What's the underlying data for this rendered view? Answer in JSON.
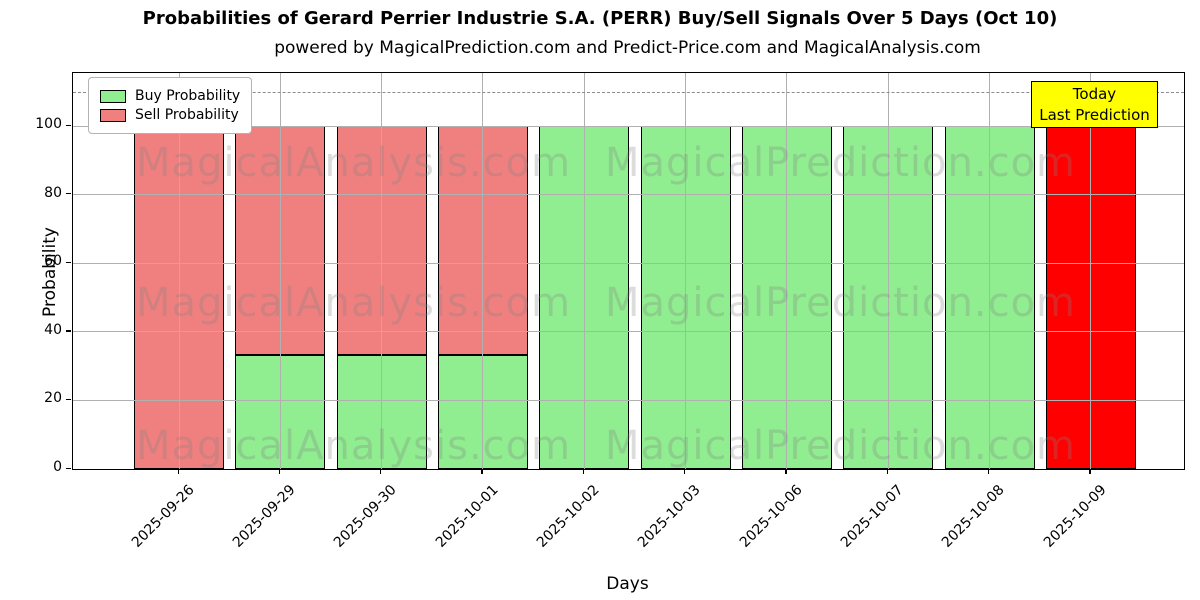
{
  "header": {
    "title": "Probabilities of Gerard Perrier Industrie S.A. (PERR) Buy/Sell Signals Over 5 Days (Oct 10)",
    "subtitle": "powered by MagicalPrediction.com and Predict-Price.com and MagicalAnalysis.com"
  },
  "axes": {
    "xlabel": "Days",
    "ylabel": "Probability",
    "yticks": [
      0,
      20,
      40,
      60,
      80,
      100
    ],
    "ylim": [
      0,
      115.5
    ],
    "dashed_line_y": 110,
    "grid": "on",
    "grid_color": "#b0b0b0"
  },
  "legend": {
    "position": "upper-left",
    "items": [
      {
        "label": "Buy Probability",
        "color": "#90EE90"
      },
      {
        "label": "Sell Probability",
        "color": "#F08080"
      }
    ]
  },
  "annotation": {
    "line1": "Today",
    "line2": "Last Prediction",
    "bg_color": "#FFFF00",
    "border_color": "#000000"
  },
  "watermarks": {
    "left_text": "MagicalAnalysis.com",
    "right_text": "MagicalPrediction.com"
  },
  "chart_data": {
    "type": "bar",
    "stacked": true,
    "title": "Probabilities of Gerard Perrier Industrie S.A. (PERR) Buy/Sell Signals Over 5 Days (Oct 10)",
    "xlabel": "Days",
    "ylabel": "Probability",
    "ylim": [
      0,
      115.5
    ],
    "categories": [
      "2025-09-26",
      "2025-09-29",
      "2025-09-30",
      "2025-10-01",
      "2025-10-02",
      "2025-10-03",
      "2025-10-06",
      "2025-10-07",
      "2025-10-08",
      "2025-10-09"
    ],
    "series": [
      {
        "name": "Buy Probability",
        "color": "#90EE90",
        "values": [
          0,
          33.33,
          33.33,
          33.33,
          100,
          100,
          100,
          100,
          100,
          0
        ]
      },
      {
        "name": "Sell Probability",
        "color": "#F08080",
        "values": [
          100,
          66.67,
          66.67,
          66.67,
          0,
          0,
          0,
          0,
          0,
          0
        ]
      },
      {
        "name": "Today Last Prediction",
        "color": "#FF0000",
        "values": [
          0,
          0,
          0,
          0,
          0,
          0,
          0,
          0,
          0,
          100
        ]
      }
    ],
    "legend_position": "upper-left",
    "bar_edge_color": "#000000"
  }
}
